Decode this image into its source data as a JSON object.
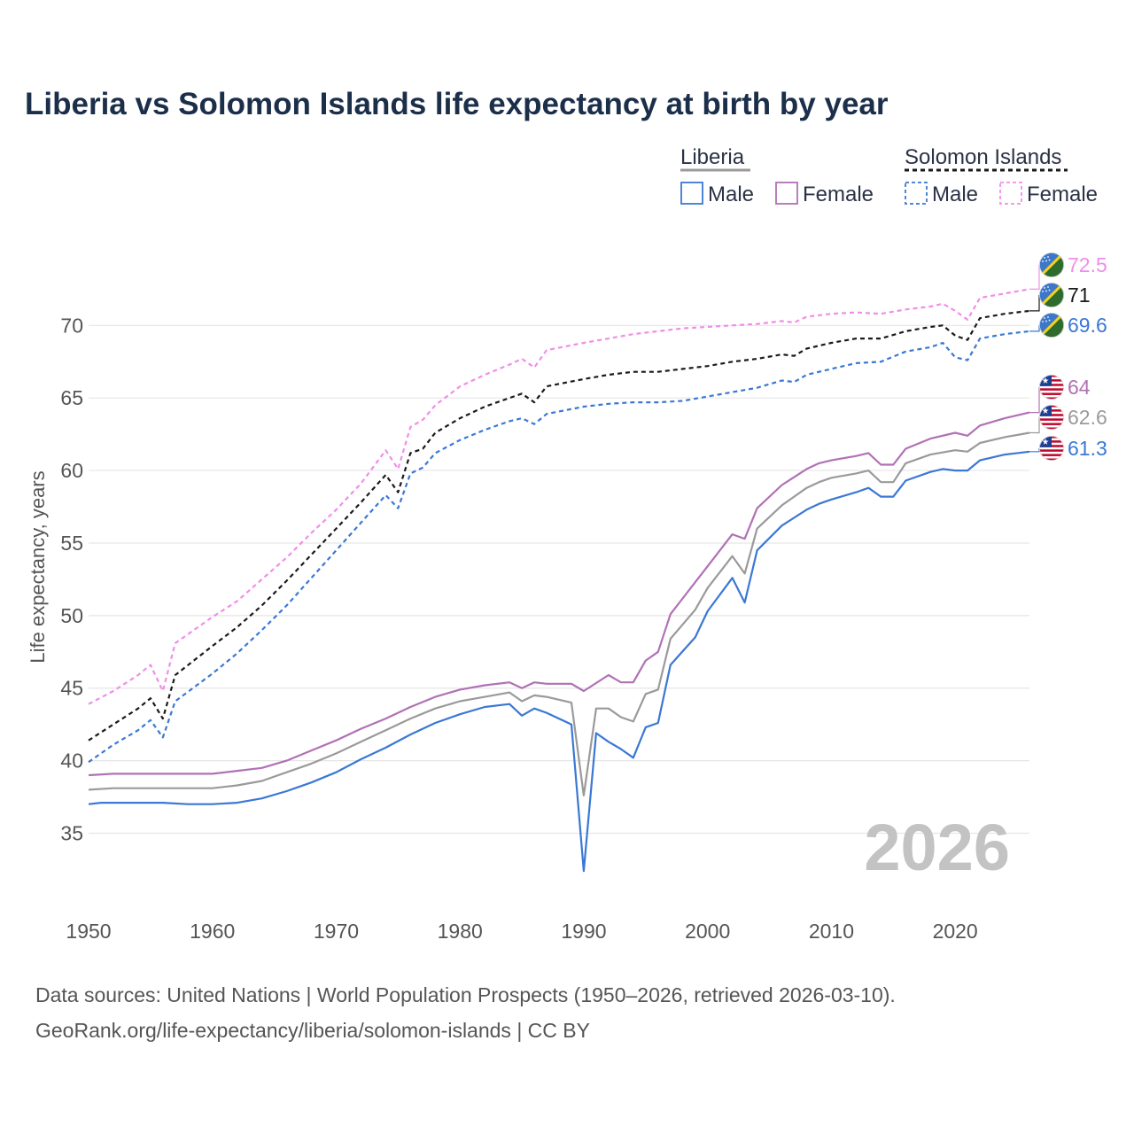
{
  "colors": {
    "lib_male": "#3a78d4",
    "lib_female": "#b071b5",
    "lib_total": "#9a9a9a",
    "sol_male": "#3a78d4",
    "sol_female": "#f08ee8",
    "sol_total": "#1a1a1a",
    "title": "#1c2f4a",
    "watermark": "#c3c3c3"
  },
  "chart_data": {
    "type": "line",
    "title": "Liberia vs Solomon Islands life expectancy at birth by year",
    "xlabel": "",
    "ylabel": "Life expectancy, years",
    "xlim": [
      1950,
      2026
    ],
    "ylim": [
      31,
      73.5
    ],
    "x_ticks": [
      1950,
      1960,
      1970,
      1980,
      1990,
      2000,
      2010,
      2020
    ],
    "y_ticks": [
      35,
      40,
      45,
      50,
      55,
      60,
      65,
      70
    ],
    "grid": true,
    "year_label": "2026",
    "legend": {
      "groups": [
        {
          "name": "Liberia",
          "entries": [
            "Male",
            "Female"
          ]
        },
        {
          "name": "Solomon Islands",
          "entries": [
            "Male",
            "Female"
          ]
        }
      ]
    },
    "series": [
      {
        "id": "lib_female",
        "country": "Liberia",
        "sex": "Female",
        "dashed": false,
        "end_label": "64",
        "flag": "liberia-flag",
        "points": [
          [
            1950,
            39
          ],
          [
            1952,
            39.1
          ],
          [
            1960,
            39.1
          ],
          [
            1962,
            39.3
          ],
          [
            1964,
            39.5
          ],
          [
            1966,
            40
          ],
          [
            1968,
            40.7
          ],
          [
            1970,
            41.4
          ],
          [
            1972,
            42.2
          ],
          [
            1974,
            42.9
          ],
          [
            1976,
            43.7
          ],
          [
            1978,
            44.4
          ],
          [
            1980,
            44.9
          ],
          [
            1982,
            45.2
          ],
          [
            1984,
            45.4
          ],
          [
            1985,
            45
          ],
          [
            1986,
            45.4
          ],
          [
            1987,
            45.3
          ],
          [
            1989,
            45.3
          ],
          [
            1990,
            44.8
          ],
          [
            1992,
            45.9
          ],
          [
            1993,
            45.4
          ],
          [
            1994,
            45.4
          ],
          [
            1995,
            46.9
          ],
          [
            1996,
            47.5
          ],
          [
            1997,
            50.1
          ],
          [
            1999,
            52.3
          ],
          [
            2000,
            53.4
          ],
          [
            2002,
            55.6
          ],
          [
            2003,
            55.3
          ],
          [
            2004,
            57.4
          ],
          [
            2006,
            59
          ],
          [
            2008,
            60.1
          ],
          [
            2009,
            60.5
          ],
          [
            2010,
            60.7
          ],
          [
            2012,
            61
          ],
          [
            2013,
            61.2
          ],
          [
            2014,
            60.4
          ],
          [
            2015,
            60.4
          ],
          [
            2016,
            61.5
          ],
          [
            2018,
            62.2
          ],
          [
            2020,
            62.6
          ],
          [
            2021,
            62.4
          ],
          [
            2022,
            63.1
          ],
          [
            2024,
            63.6
          ],
          [
            2026,
            64
          ]
        ]
      },
      {
        "id": "lib_total",
        "country": "Liberia",
        "sex": "Total",
        "dashed": false,
        "end_label": "62.6",
        "flag": "liberia-flag",
        "points": [
          [
            1950,
            38
          ],
          [
            1952,
            38.1
          ],
          [
            1960,
            38.1
          ],
          [
            1962,
            38.3
          ],
          [
            1964,
            38.6
          ],
          [
            1966,
            39.2
          ],
          [
            1968,
            39.8
          ],
          [
            1970,
            40.5
          ],
          [
            1972,
            41.3
          ],
          [
            1974,
            42.1
          ],
          [
            1976,
            42.9
          ],
          [
            1978,
            43.6
          ],
          [
            1980,
            44.1
          ],
          [
            1982,
            44.4
          ],
          [
            1984,
            44.7
          ],
          [
            1985,
            44.1
          ],
          [
            1986,
            44.5
          ],
          [
            1987,
            44.4
          ],
          [
            1989,
            44
          ],
          [
            1990,
            37.6
          ],
          [
            1991,
            43.6
          ],
          [
            1992,
            43.6
          ],
          [
            1993,
            43
          ],
          [
            1994,
            42.7
          ],
          [
            1995,
            44.6
          ],
          [
            1996,
            44.9
          ],
          [
            1997,
            48.4
          ],
          [
            1999,
            50.4
          ],
          [
            2000,
            51.9
          ],
          [
            2002,
            54.1
          ],
          [
            2003,
            52.9
          ],
          [
            2004,
            56
          ],
          [
            2006,
            57.6
          ],
          [
            2008,
            58.8
          ],
          [
            2009,
            59.2
          ],
          [
            2010,
            59.5
          ],
          [
            2012,
            59.8
          ],
          [
            2013,
            60
          ],
          [
            2014,
            59.2
          ],
          [
            2015,
            59.2
          ],
          [
            2016,
            60.5
          ],
          [
            2018,
            61.1
          ],
          [
            2020,
            61.4
          ],
          [
            2021,
            61.3
          ],
          [
            2022,
            61.9
          ],
          [
            2024,
            62.3
          ],
          [
            2026,
            62.6
          ]
        ]
      },
      {
        "id": "lib_male",
        "country": "Liberia",
        "sex": "Male",
        "dashed": false,
        "end_label": "61.3",
        "flag": "liberia-flag",
        "points": [
          [
            1950,
            37
          ],
          [
            1951,
            37.1
          ],
          [
            1956,
            37.1
          ],
          [
            1958,
            37
          ],
          [
            1960,
            37
          ],
          [
            1962,
            37.1
          ],
          [
            1964,
            37.4
          ],
          [
            1966,
            37.9
          ],
          [
            1968,
            38.5
          ],
          [
            1970,
            39.2
          ],
          [
            1972,
            40.1
          ],
          [
            1974,
            40.9
          ],
          [
            1976,
            41.8
          ],
          [
            1978,
            42.6
          ],
          [
            1980,
            43.2
          ],
          [
            1982,
            43.7
          ],
          [
            1984,
            43.9
          ],
          [
            1985,
            43.1
          ],
          [
            1986,
            43.6
          ],
          [
            1987,
            43.3
          ],
          [
            1989,
            42.5
          ],
          [
            1990,
            32.4
          ],
          [
            1991,
            41.9
          ],
          [
            1992,
            41.3
          ],
          [
            1993,
            40.8
          ],
          [
            1994,
            40.2
          ],
          [
            1995,
            42.3
          ],
          [
            1996,
            42.6
          ],
          [
            1997,
            46.6
          ],
          [
            1999,
            48.5
          ],
          [
            2000,
            50.3
          ],
          [
            2002,
            52.6
          ],
          [
            2003,
            50.9
          ],
          [
            2004,
            54.5
          ],
          [
            2006,
            56.2
          ],
          [
            2008,
            57.3
          ],
          [
            2009,
            57.7
          ],
          [
            2010,
            58
          ],
          [
            2012,
            58.5
          ],
          [
            2013,
            58.8
          ],
          [
            2014,
            58.2
          ],
          [
            2015,
            58.2
          ],
          [
            2016,
            59.3
          ],
          [
            2018,
            59.9
          ],
          [
            2019,
            60.1
          ],
          [
            2020,
            60
          ],
          [
            2021,
            60
          ],
          [
            2022,
            60.7
          ],
          [
            2024,
            61.1
          ],
          [
            2026,
            61.3
          ]
        ]
      },
      {
        "id": "sol_female",
        "country": "Solomon Islands",
        "sex": "Female",
        "dashed": true,
        "end_label": "72.5",
        "flag": "solomon-islands-flag",
        "points": [
          [
            1950,
            43.9
          ],
          [
            1952,
            44.8
          ],
          [
            1954,
            45.9
          ],
          [
            1955,
            46.6
          ],
          [
            1956,
            44.8
          ],
          [
            1957,
            48.1
          ],
          [
            1960,
            49.9
          ],
          [
            1962,
            51
          ],
          [
            1964,
            52.5
          ],
          [
            1966,
            54
          ],
          [
            1968,
            55.7
          ],
          [
            1970,
            57.3
          ],
          [
            1972,
            59.1
          ],
          [
            1974,
            61.4
          ],
          [
            1975,
            60.1
          ],
          [
            1976,
            63
          ],
          [
            1977,
            63.5
          ],
          [
            1978,
            64.5
          ],
          [
            1980,
            65.8
          ],
          [
            1982,
            66.6
          ],
          [
            1984,
            67.3
          ],
          [
            1985,
            67.7
          ],
          [
            1986,
            67.1
          ],
          [
            1987,
            68.3
          ],
          [
            1990,
            68.8
          ],
          [
            1992,
            69.1
          ],
          [
            1994,
            69.4
          ],
          [
            1996,
            69.6
          ],
          [
            1998,
            69.8
          ],
          [
            2000,
            69.9
          ],
          [
            2002,
            70
          ],
          [
            2004,
            70.1
          ],
          [
            2006,
            70.3
          ],
          [
            2007,
            70.2
          ],
          [
            2008,
            70.6
          ],
          [
            2010,
            70.8
          ],
          [
            2012,
            70.9
          ],
          [
            2014,
            70.8
          ],
          [
            2016,
            71.1
          ],
          [
            2018,
            71.3
          ],
          [
            2019,
            71.5
          ],
          [
            2020,
            71
          ],
          [
            2021,
            70.4
          ],
          [
            2022,
            71.9
          ],
          [
            2024,
            72.2
          ],
          [
            2026,
            72.5
          ]
        ]
      },
      {
        "id": "sol_total",
        "country": "Solomon Islands",
        "sex": "Total",
        "dashed": true,
        "end_label": "71",
        "flag": "solomon-islands-flag",
        "points": [
          [
            1950,
            41.4
          ],
          [
            1952,
            42.5
          ],
          [
            1954,
            43.6
          ],
          [
            1955,
            44.3
          ],
          [
            1956,
            42.9
          ],
          [
            1957,
            45.9
          ],
          [
            1960,
            47.9
          ],
          [
            1962,
            49.2
          ],
          [
            1964,
            50.7
          ],
          [
            1966,
            52.4
          ],
          [
            1968,
            54.2
          ],
          [
            1970,
            56
          ],
          [
            1972,
            57.8
          ],
          [
            1974,
            59.7
          ],
          [
            1975,
            58.5
          ],
          [
            1976,
            61.2
          ],
          [
            1977,
            61.5
          ],
          [
            1978,
            62.6
          ],
          [
            1980,
            63.6
          ],
          [
            1982,
            64.4
          ],
          [
            1984,
            65
          ],
          [
            1985,
            65.3
          ],
          [
            1986,
            64.7
          ],
          [
            1987,
            65.8
          ],
          [
            1990,
            66.3
          ],
          [
            1992,
            66.6
          ],
          [
            1994,
            66.8
          ],
          [
            1996,
            66.8
          ],
          [
            1998,
            67
          ],
          [
            2000,
            67.2
          ],
          [
            2002,
            67.5
          ],
          [
            2004,
            67.7
          ],
          [
            2006,
            68
          ],
          [
            2007,
            67.9
          ],
          [
            2008,
            68.4
          ],
          [
            2010,
            68.8
          ],
          [
            2012,
            69.1
          ],
          [
            2014,
            69.1
          ],
          [
            2016,
            69.6
          ],
          [
            2018,
            69.9
          ],
          [
            2019,
            70
          ],
          [
            2020,
            69.3
          ],
          [
            2021,
            69
          ],
          [
            2022,
            70.5
          ],
          [
            2024,
            70.8
          ],
          [
            2026,
            71
          ]
        ]
      },
      {
        "id": "sol_male",
        "country": "Solomon Islands",
        "sex": "Male",
        "dashed": true,
        "end_label": "69.6",
        "flag": "solomon-islands-flag",
        "points": [
          [
            1950,
            39.9
          ],
          [
            1952,
            41.1
          ],
          [
            1954,
            42.1
          ],
          [
            1955,
            42.8
          ],
          [
            1956,
            41.6
          ],
          [
            1957,
            44.1
          ],
          [
            1960,
            46
          ],
          [
            1962,
            47.4
          ],
          [
            1964,
            49
          ],
          [
            1966,
            50.7
          ],
          [
            1968,
            52.6
          ],
          [
            1970,
            54.5
          ],
          [
            1972,
            56.4
          ],
          [
            1974,
            58.3
          ],
          [
            1975,
            57.4
          ],
          [
            1976,
            59.8
          ],
          [
            1977,
            60.2
          ],
          [
            1978,
            61.2
          ],
          [
            1980,
            62.1
          ],
          [
            1982,
            62.8
          ],
          [
            1984,
            63.4
          ],
          [
            1985,
            63.6
          ],
          [
            1986,
            63.2
          ],
          [
            1987,
            63.9
          ],
          [
            1990,
            64.4
          ],
          [
            1992,
            64.6
          ],
          [
            1994,
            64.7
          ],
          [
            1996,
            64.7
          ],
          [
            1998,
            64.8
          ],
          [
            2000,
            65.1
          ],
          [
            2002,
            65.4
          ],
          [
            2004,
            65.7
          ],
          [
            2006,
            66.2
          ],
          [
            2007,
            66.1
          ],
          [
            2008,
            66.6
          ],
          [
            2010,
            67
          ],
          [
            2012,
            67.4
          ],
          [
            2014,
            67.5
          ],
          [
            2016,
            68.2
          ],
          [
            2018,
            68.5
          ],
          [
            2019,
            68.8
          ],
          [
            2020,
            67.8
          ],
          [
            2021,
            67.6
          ],
          [
            2022,
            69.1
          ],
          [
            2024,
            69.4
          ],
          [
            2026,
            69.6
          ]
        ]
      }
    ]
  },
  "footer": {
    "line1": "Data sources: United Nations | World Population Prospects (1950–2026, retrieved 2026-03-10).",
    "line2": "GeoRank.org/life-expectancy/liberia/solomon-islands | CC BY"
  }
}
